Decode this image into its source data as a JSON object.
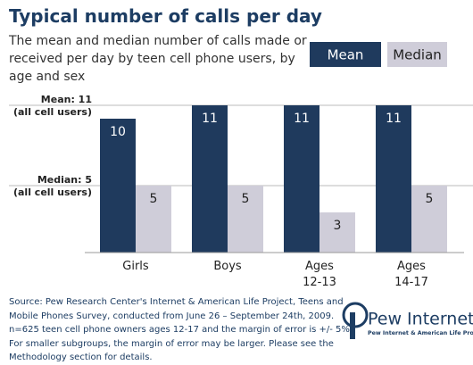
{
  "chart_data": {
    "type": "bar",
    "title": "Typical number of calls per day",
    "subtitle": "The mean and median number of calls made or\nreceived per day by teen cell phone users, by\nage and sex",
    "categories": [
      "Girls",
      "Boys",
      "Ages\n12-13",
      "Ages\n14-17"
    ],
    "series": [
      {
        "name": "Mean",
        "color": "#1f3a5d",
        "values": [
          10,
          11,
          11,
          11
        ]
      },
      {
        "name": "Median",
        "color": "#cfcdd9",
        "values": [
          5,
          5,
          3,
          5
        ]
      }
    ],
    "ylim": [
      0,
      11
    ],
    "reference_lines": [
      {
        "label": "Mean: 11\n(all cell users)",
        "value": 11
      },
      {
        "label": "Median: 5\n(all cell users)",
        "value": 5
      }
    ],
    "source": "Source: Pew Research Center's Internet & American Life Project, Teens and\nMobile Phones Survey, conducted from June 26 – September 24th, 2009.\nn=625 teen cell phone owners ages 12-17 and the margin of error is +/- 5%.\nFor smaller subgroups, the margin of error may be larger. Please see the\nMethodology section for details.",
    "logo": {
      "name": "Pew Internet",
      "tagline": "Pew Internet & American Life Project"
    }
  }
}
